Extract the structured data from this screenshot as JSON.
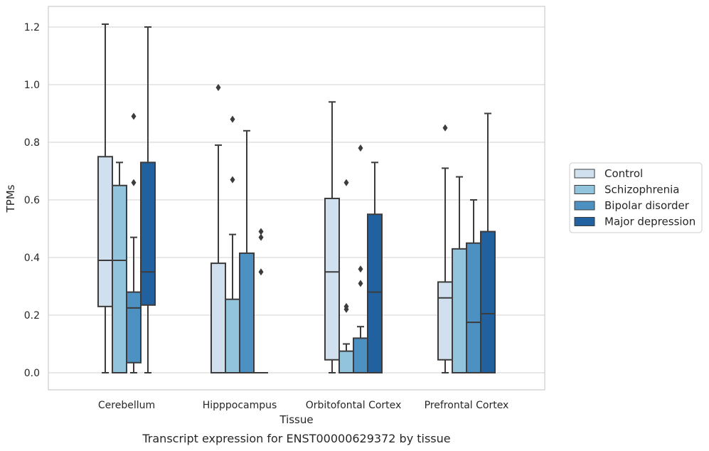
{
  "chart_data": {
    "type": "boxplot",
    "xlabel": "Tissue",
    "ylabel": "TPMs",
    "caption": "Transcript expression for ENST00000629372 by tissue",
    "ylim": [
      -0.06,
      1.27
    ],
    "yticks": [
      0.0,
      0.2,
      0.4,
      0.6,
      0.8,
      1.0,
      1.2
    ],
    "grid": "horizontal",
    "legend_position": "right",
    "categories": [
      "Cerebellum",
      "Hipppocampus",
      "Orbitofontal Cortex",
      "Prefrontal Cortex"
    ],
    "series": [
      {
        "name": "Control",
        "color": "#d0e0ef",
        "boxes": [
          {
            "whislo": 0.0,
            "q1": 0.23,
            "med": 0.39,
            "q3": 0.75,
            "whishi": 1.21,
            "fliers": []
          },
          {
            "whislo": 0.0,
            "q1": 0.0,
            "med": 0.0,
            "q3": 0.38,
            "whishi": 0.79,
            "fliers": [
              0.99
            ]
          },
          {
            "whislo": 0.0,
            "q1": 0.045,
            "med": 0.35,
            "q3": 0.605,
            "whishi": 0.94,
            "fliers": []
          },
          {
            "whislo": 0.0,
            "q1": 0.045,
            "med": 0.26,
            "q3": 0.315,
            "whishi": 0.71,
            "fliers": [
              0.85
            ]
          }
        ]
      },
      {
        "name": "Schizophrenia",
        "color": "#93c4de",
        "boxes": [
          {
            "whislo": 0.0,
            "q1": 0.0,
            "med": 0.39,
            "q3": 0.65,
            "whishi": 0.73,
            "fliers": []
          },
          {
            "whislo": 0.0,
            "q1": 0.0,
            "med": 0.0,
            "q3": 0.255,
            "whishi": 0.48,
            "fliers": [
              0.67,
              0.88
            ]
          },
          {
            "whislo": 0.0,
            "q1": 0.0,
            "med": 0.0,
            "q3": 0.075,
            "whishi": 0.1,
            "fliers": [
              0.22,
              0.23,
              0.66
            ]
          },
          {
            "whislo": 0.0,
            "q1": 0.0,
            "med": 0.0,
            "q3": 0.43,
            "whishi": 0.68,
            "fliers": []
          }
        ]
      },
      {
        "name": "Bipolar disorder",
        "color": "#4d91c3",
        "boxes": [
          {
            "whislo": 0.0,
            "q1": 0.035,
            "med": 0.225,
            "q3": 0.28,
            "whishi": 0.47,
            "fliers": [
              0.66,
              0.89
            ]
          },
          {
            "whislo": 0.0,
            "q1": 0.0,
            "med": 0.0,
            "q3": 0.415,
            "whishi": 0.84,
            "fliers": []
          },
          {
            "whislo": 0.0,
            "q1": 0.0,
            "med": 0.0,
            "q3": 0.12,
            "whishi": 0.16,
            "fliers": [
              0.31,
              0.36,
              0.78
            ]
          },
          {
            "whislo": 0.0,
            "q1": 0.0,
            "med": 0.175,
            "q3": 0.45,
            "whishi": 0.6,
            "fliers": []
          }
        ]
      },
      {
        "name": "Major depression",
        "color": "#2161a0",
        "boxes": [
          {
            "whislo": 0.0,
            "q1": 0.235,
            "med": 0.35,
            "q3": 0.73,
            "whishi": 1.2,
            "fliers": []
          },
          {
            "whislo": 0.0,
            "q1": 0.0,
            "med": 0.0,
            "q3": 0.0,
            "whishi": 0.0,
            "fliers": [
              0.35,
              0.47,
              0.49
            ]
          },
          {
            "whislo": 0.0,
            "q1": 0.0,
            "med": 0.28,
            "q3": 0.55,
            "whishi": 0.73,
            "fliers": []
          },
          {
            "whislo": 0.0,
            "q1": 0.0,
            "med": 0.205,
            "q3": 0.49,
            "whishi": 0.9,
            "fliers": []
          }
        ]
      }
    ]
  }
}
